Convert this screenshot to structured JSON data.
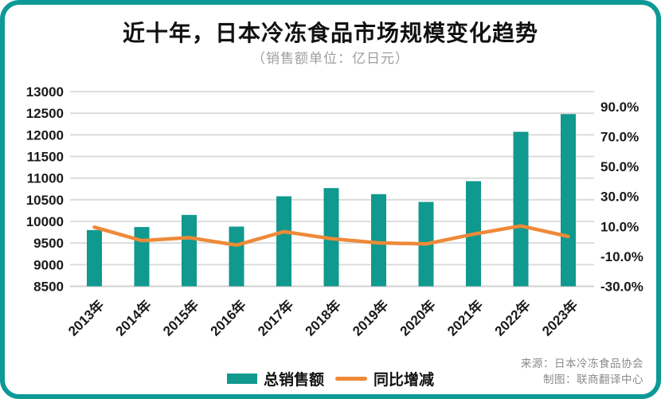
{
  "colors": {
    "teal": "#10998e",
    "orange": "#ee8a38",
    "border_teal": "#0d9a96",
    "gridline": "#d9d9d9",
    "axis_text": "#1a1a1a",
    "subtitle_gray": "#9e9e9e",
    "source_gray": "#8a8a8a"
  },
  "source": {
    "line1": "来源：日本冷冻食品协会",
    "line2": "制图：联商翻译中心"
  },
  "chart_data": {
    "type": "bar+line combo",
    "title": "近十年，日本冷冻食品市场规模变化趋势",
    "subtitle": "（销售额单位：亿日元）",
    "grid": true,
    "legend_position": "bottom",
    "categories": [
      "2013年",
      "2014年",
      "2015年",
      "2016年",
      "2017年",
      "2018年",
      "2019年",
      "2020年",
      "2021年",
      "2022年",
      "2023年"
    ],
    "series": [
      {
        "name": "总销售额",
        "type": "bar",
        "axis": "left",
        "unit": "亿日元",
        "values": [
          9800,
          9870,
          10150,
          9880,
          10580,
          10770,
          10630,
          10450,
          10930,
          12070,
          12480
        ]
      },
      {
        "name": "同比增减",
        "type": "line",
        "axis": "right",
        "unit": "%",
        "values": [
          9.5,
          0.5,
          2.5,
          -2.5,
          6.5,
          1.8,
          -1.0,
          -1.7,
          4.8,
          10.3,
          3.3
        ]
      }
    ],
    "left_axis": {
      "min": 8500,
      "max": 13000,
      "ticks": [
        13000,
        12500,
        12000,
        11500,
        11000,
        10500,
        10000,
        9500,
        9000,
        8500
      ]
    },
    "right_axis": {
      "min": -30,
      "max": 100,
      "ticks": [
        {
          "v": 90,
          "label": "90.0%"
        },
        {
          "v": 70,
          "label": "70.0%"
        },
        {
          "v": 50,
          "label": "50.0%"
        },
        {
          "v": 30,
          "label": "30.0%"
        },
        {
          "v": 10,
          "label": "10.0%"
        },
        {
          "v": -10,
          "label": "-10.0%"
        },
        {
          "v": -30,
          "label": "-30.0%"
        }
      ]
    }
  }
}
